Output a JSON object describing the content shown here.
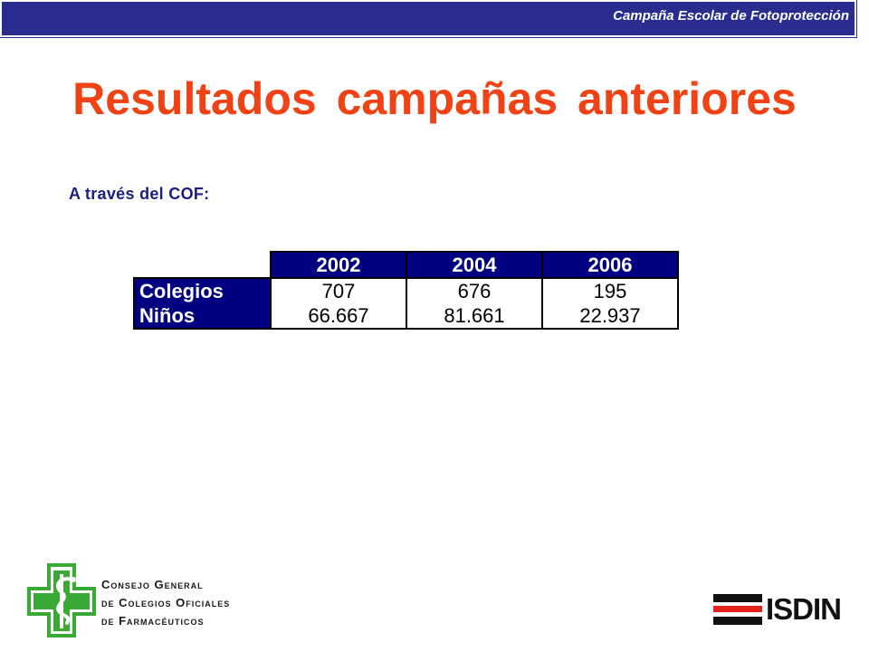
{
  "header": {
    "campaign_label": "Campaña Escolar de Fotoprotección"
  },
  "title": "Resultados campañas anteriores",
  "subtitle": "A través del COF:",
  "table": {
    "columns": [
      "2002",
      "2004",
      "2006"
    ],
    "rows": [
      {
        "label": "Colegios",
        "values": [
          "707",
          "676",
          "195"
        ]
      },
      {
        "label": "Niños",
        "values": [
          "66.667",
          "81.661",
          "22.937"
        ]
      }
    ]
  },
  "footer": {
    "cof_lines": [
      "Consejo General",
      "de Colegios Oficiales",
      "de Farmacéuticos"
    ],
    "brand": "ISDIN"
  },
  "colors": {
    "header_bar": "#2a2d8f",
    "title": "#f04214",
    "subtitle": "#1b1f80",
    "table_header": "#000080",
    "cof_green": "#3aa935",
    "isdin_red": "#e3231b"
  },
  "icons": {
    "cof_logo": "pharmacy-cross-serpent-icon",
    "isdin_logo": "isdin-stripes-icon"
  }
}
